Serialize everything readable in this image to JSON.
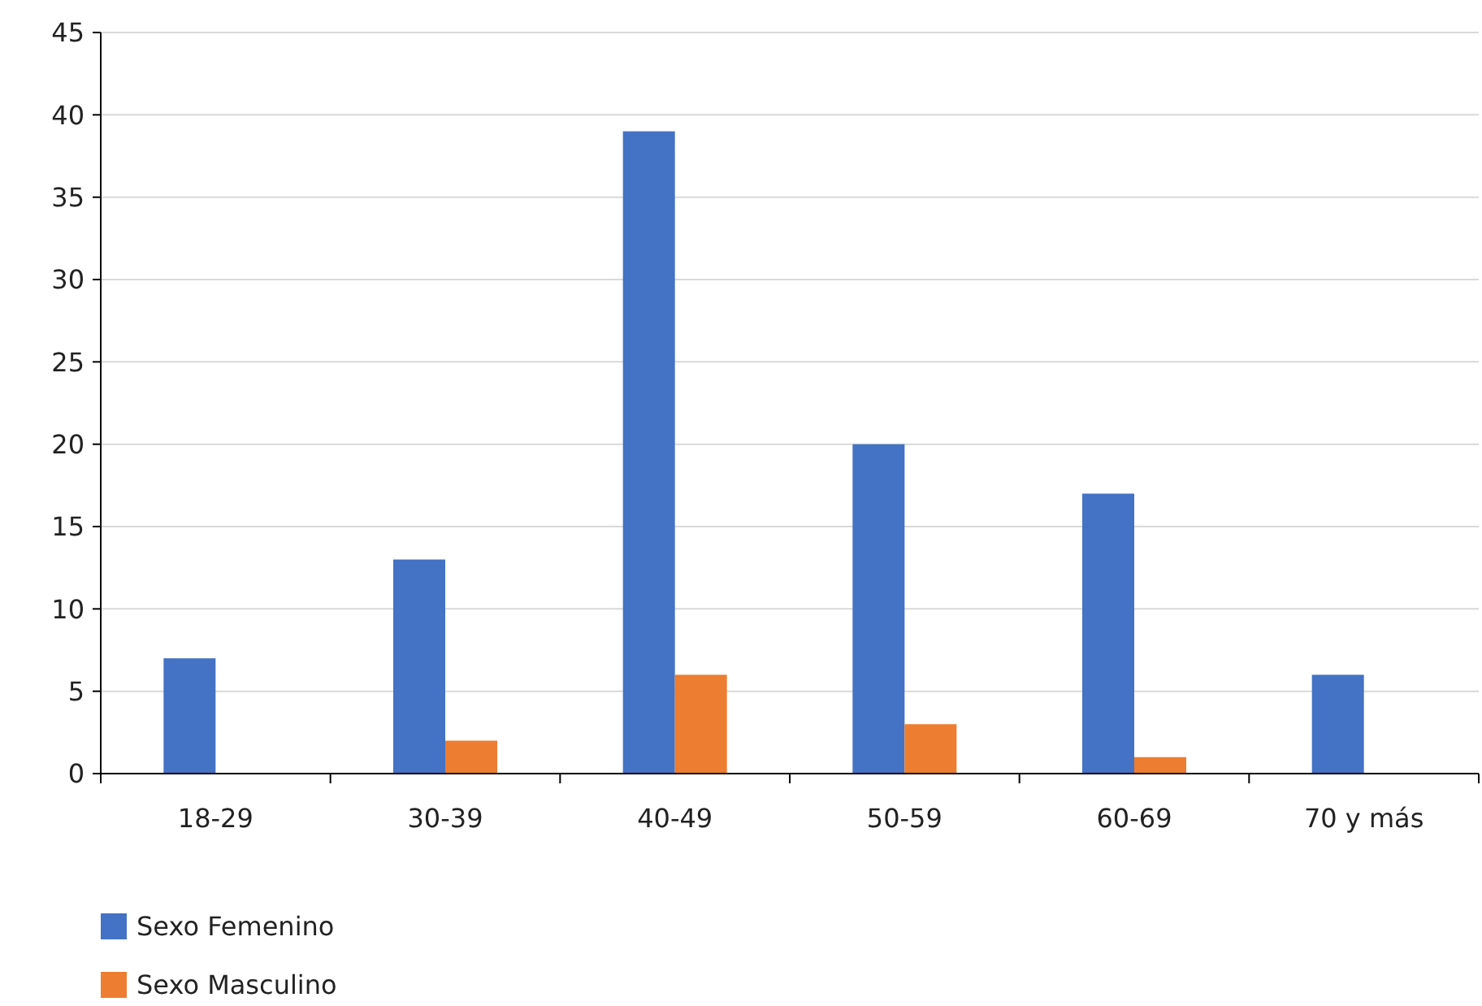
{
  "chart_data": {
    "type": "bar",
    "categories": [
      "18-29",
      "30-39",
      "40-49",
      "50-59",
      "60-69",
      "70 y más"
    ],
    "series": [
      {
        "name": "Sexo Femenino",
        "color": "#4472c4",
        "values": [
          7,
          13,
          39,
          20,
          17,
          6
        ]
      },
      {
        "name": "Sexo Masculino",
        "color": "#ed7d31",
        "values": [
          0,
          2,
          6,
          3,
          1,
          0
        ]
      }
    ],
    "ylim": [
      0,
      45
    ],
    "yticks": [
      0,
      5,
      10,
      15,
      20,
      25,
      30,
      35,
      40,
      45
    ],
    "grid": "y",
    "legend": "bottom"
  }
}
